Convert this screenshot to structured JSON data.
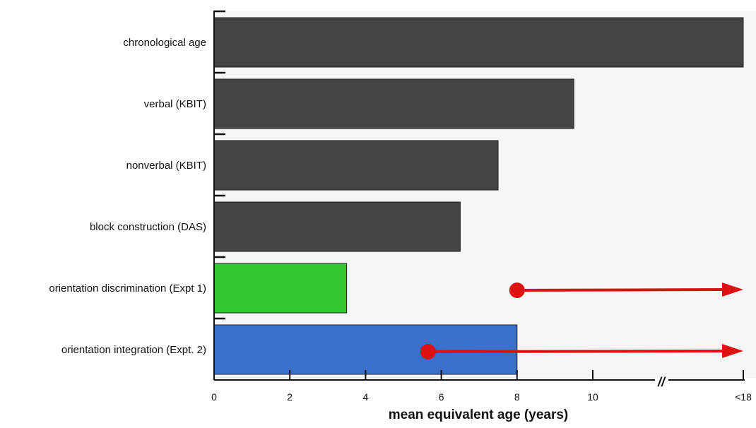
{
  "chart_data": {
    "type": "bar",
    "orientation": "horizontal",
    "title": "",
    "xlabel": "mean equivalent age (years)",
    "ylabel": "",
    "xlim": [
      0,
      14
    ],
    "x_break_between": [
      12,
      14
    ],
    "x_ticks": [
      {
        "value": 0,
        "label": "0"
      },
      {
        "value": 2,
        "label": "2"
      },
      {
        "value": 4,
        "label": "4"
      },
      {
        "value": 6,
        "label": "6"
      },
      {
        "value": 8,
        "label": "8"
      },
      {
        "value": 10,
        "label": "10"
      },
      {
        "value": 14,
        "label": "<18"
      }
    ],
    "break_marker": "//",
    "categories": [
      "chronological age",
      "verbal (KBIT)",
      "nonverbal (KBIT)",
      "block construction (DAS)",
      "orientation discrimination (Expt 1)",
      "orientation integration (Expt. 2)"
    ],
    "values": [
      14,
      9.5,
      7.5,
      6.5,
      3.5,
      8
    ],
    "bar_colors": [
      "#444444",
      "#444444",
      "#444444",
      "#444444",
      "#33c633",
      "#3a6fcc"
    ],
    "arrows": [
      {
        "category": "orientation discrimination (Expt 1)",
        "from": 8,
        "to": 14,
        "color": "#dd1111"
      },
      {
        "category": "orientation integration (Expt. 2)",
        "from": 5.65,
        "to": 14,
        "color": "#dd1111"
      }
    ],
    "background_color": "#f5f5f5",
    "grid": false,
    "legend": "none"
  }
}
